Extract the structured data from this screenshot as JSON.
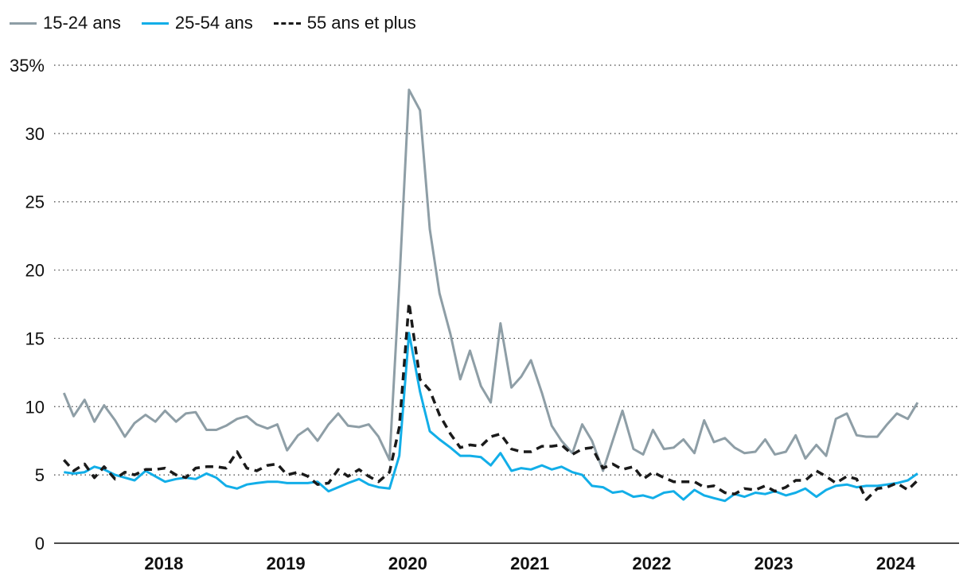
{
  "chart_data": {
    "type": "line",
    "title": "",
    "xlabel": "",
    "ylabel": "",
    "unit": "%",
    "ylim": [
      0,
      35
    ],
    "yticks": [
      "0",
      "5",
      "10",
      "15",
      "20",
      "25",
      "30",
      "35%"
    ],
    "ytick_values": [
      0,
      5,
      10,
      15,
      20,
      25,
      30,
      35
    ],
    "xlim": [
      2017.5,
      2024.92
    ],
    "xticks": [
      {
        "label": "2018",
        "x": 2018.0
      },
      {
        "label": "2019",
        "x": 2019.0
      },
      {
        "label": "2020",
        "x": 2020.0
      },
      {
        "label": "2021",
        "x": 2021.0
      },
      {
        "label": "2022",
        "x": 2022.0
      },
      {
        "label": "2023",
        "x": 2023.0
      },
      {
        "label": "2024",
        "x": 2024.0
      }
    ],
    "grid": "horizontal-dotted",
    "legend": "top-left",
    "series": [
      {
        "name": "15-24 ans",
        "color": "#8e9ea6",
        "style": "solid",
        "points": [
          [
            2017.58,
            11.0
          ],
          [
            2017.66,
            9.3
          ],
          [
            2017.75,
            10.5
          ],
          [
            2017.83,
            8.9
          ],
          [
            2017.91,
            10.1
          ],
          [
            2018.0,
            9.0
          ],
          [
            2018.08,
            7.8
          ],
          [
            2018.16,
            8.8
          ],
          [
            2018.25,
            9.4
          ],
          [
            2018.33,
            8.9
          ],
          [
            2018.41,
            9.7
          ],
          [
            2018.5,
            8.9
          ],
          [
            2018.58,
            9.5
          ],
          [
            2018.66,
            9.6
          ],
          [
            2018.75,
            8.3
          ],
          [
            2018.83,
            8.3
          ],
          [
            2018.91,
            8.6
          ],
          [
            2019.0,
            9.1
          ],
          [
            2019.08,
            9.3
          ],
          [
            2019.16,
            8.7
          ],
          [
            2019.25,
            8.4
          ],
          [
            2019.33,
            8.7
          ],
          [
            2019.41,
            6.8
          ],
          [
            2019.5,
            7.9
          ],
          [
            2019.58,
            8.4
          ],
          [
            2019.66,
            7.5
          ],
          [
            2019.75,
            8.7
          ],
          [
            2019.83,
            9.5
          ],
          [
            2019.91,
            8.6
          ],
          [
            2020.0,
            8.5
          ],
          [
            2020.08,
            8.7
          ],
          [
            2020.16,
            7.8
          ],
          [
            2020.25,
            6.1
          ],
          [
            2020.33,
            19.0
          ],
          [
            2020.41,
            33.2
          ],
          [
            2020.5,
            31.7
          ],
          [
            2020.58,
            23.0
          ],
          [
            2020.66,
            18.3
          ],
          [
            2020.75,
            15.3
          ],
          [
            2020.83,
            12.0
          ],
          [
            2020.91,
            14.1
          ],
          [
            2021.0,
            11.5
          ],
          [
            2021.08,
            10.3
          ],
          [
            2021.16,
            16.1
          ],
          [
            2021.25,
            11.4
          ],
          [
            2021.33,
            12.2
          ],
          [
            2021.41,
            13.4
          ],
          [
            2021.5,
            11.0
          ],
          [
            2021.58,
            8.6
          ],
          [
            2021.66,
            7.5
          ],
          [
            2021.75,
            6.6
          ],
          [
            2021.83,
            8.7
          ],
          [
            2021.91,
            7.5
          ],
          [
            2022.0,
            5.3
          ],
          [
            2022.08,
            7.5
          ],
          [
            2022.16,
            9.7
          ],
          [
            2022.25,
            6.9
          ],
          [
            2022.33,
            6.5
          ],
          [
            2022.41,
            8.3
          ],
          [
            2022.5,
            6.9
          ],
          [
            2022.58,
            7.0
          ],
          [
            2022.66,
            7.6
          ],
          [
            2022.75,
            6.6
          ],
          [
            2022.83,
            9.0
          ],
          [
            2022.91,
            7.4
          ],
          [
            2023.0,
            7.7
          ],
          [
            2023.08,
            7.0
          ],
          [
            2023.16,
            6.6
          ],
          [
            2023.25,
            6.7
          ],
          [
            2023.33,
            7.6
          ],
          [
            2023.41,
            6.5
          ],
          [
            2023.5,
            6.7
          ],
          [
            2023.58,
            7.9
          ],
          [
            2023.66,
            6.2
          ],
          [
            2023.75,
            7.2
          ],
          [
            2023.83,
            6.4
          ],
          [
            2023.91,
            9.1
          ],
          [
            2024.0,
            9.5
          ],
          [
            2024.08,
            7.9
          ],
          [
            2024.16,
            7.8
          ],
          [
            2024.25,
            7.8
          ],
          [
            2024.33,
            8.7
          ],
          [
            2024.41,
            9.5
          ],
          [
            2024.5,
            9.1
          ],
          [
            2024.58,
            10.3
          ]
        ]
      },
      {
        "name": "25-54 ans",
        "color": "#12aee8",
        "style": "solid",
        "points": [
          [
            2017.58,
            5.2
          ],
          [
            2017.66,
            5.1
          ],
          [
            2017.75,
            5.2
          ],
          [
            2017.83,
            5.6
          ],
          [
            2017.91,
            5.4
          ],
          [
            2018.0,
            5.0
          ],
          [
            2018.08,
            4.8
          ],
          [
            2018.16,
            4.6
          ],
          [
            2018.25,
            5.3
          ],
          [
            2018.33,
            4.9
          ],
          [
            2018.41,
            4.5
          ],
          [
            2018.5,
            4.7
          ],
          [
            2018.58,
            4.8
          ],
          [
            2018.66,
            4.7
          ],
          [
            2018.75,
            5.1
          ],
          [
            2018.83,
            4.8
          ],
          [
            2018.91,
            4.2
          ],
          [
            2019.0,
            4.0
          ],
          [
            2019.08,
            4.3
          ],
          [
            2019.16,
            4.4
          ],
          [
            2019.25,
            4.5
          ],
          [
            2019.33,
            4.5
          ],
          [
            2019.41,
            4.4
          ],
          [
            2019.5,
            4.4
          ],
          [
            2019.58,
            4.4
          ],
          [
            2019.66,
            4.5
          ],
          [
            2019.75,
            3.8
          ],
          [
            2019.83,
            4.1
          ],
          [
            2019.91,
            4.4
          ],
          [
            2020.0,
            4.7
          ],
          [
            2020.08,
            4.3
          ],
          [
            2020.16,
            4.1
          ],
          [
            2020.25,
            4.0
          ],
          [
            2020.33,
            6.4
          ],
          [
            2020.41,
            15.4
          ],
          [
            2020.5,
            11.1
          ],
          [
            2020.58,
            8.2
          ],
          [
            2020.66,
            7.6
          ],
          [
            2020.75,
            7.0
          ],
          [
            2020.83,
            6.4
          ],
          [
            2020.91,
            6.4
          ],
          [
            2021.0,
            6.3
          ],
          [
            2021.08,
            5.7
          ],
          [
            2021.16,
            6.6
          ],
          [
            2021.25,
            5.3
          ],
          [
            2021.33,
            5.5
          ],
          [
            2021.41,
            5.4
          ],
          [
            2021.5,
            5.7
          ],
          [
            2021.58,
            5.4
          ],
          [
            2021.66,
            5.6
          ],
          [
            2021.75,
            5.2
          ],
          [
            2021.83,
            5.0
          ],
          [
            2021.91,
            4.2
          ],
          [
            2022.0,
            4.1
          ],
          [
            2022.08,
            3.7
          ],
          [
            2022.16,
            3.8
          ],
          [
            2022.25,
            3.4
          ],
          [
            2022.33,
            3.5
          ],
          [
            2022.41,
            3.3
          ],
          [
            2022.5,
            3.7
          ],
          [
            2022.58,
            3.8
          ],
          [
            2022.66,
            3.2
          ],
          [
            2022.75,
            3.9
          ],
          [
            2022.83,
            3.5
          ],
          [
            2022.91,
            3.3
          ],
          [
            2023.0,
            3.1
          ],
          [
            2023.08,
            3.6
          ],
          [
            2023.16,
            3.4
          ],
          [
            2023.25,
            3.7
          ],
          [
            2023.33,
            3.6
          ],
          [
            2023.41,
            3.8
          ],
          [
            2023.5,
            3.5
          ],
          [
            2023.58,
            3.7
          ],
          [
            2023.66,
            4.0
          ],
          [
            2023.75,
            3.4
          ],
          [
            2023.83,
            3.9
          ],
          [
            2023.91,
            4.2
          ],
          [
            2024.0,
            4.3
          ],
          [
            2024.08,
            4.1
          ],
          [
            2024.16,
            4.2
          ],
          [
            2024.25,
            4.2
          ],
          [
            2024.33,
            4.3
          ],
          [
            2024.41,
            4.4
          ],
          [
            2024.5,
            4.6
          ],
          [
            2024.58,
            5.1
          ]
        ]
      },
      {
        "name": "55 ans et plus",
        "color": "#1a1a1a",
        "style": "dashed",
        "points": [
          [
            2017.58,
            6.1
          ],
          [
            2017.66,
            5.3
          ],
          [
            2017.75,
            5.8
          ],
          [
            2017.83,
            4.8
          ],
          [
            2017.91,
            5.6
          ],
          [
            2018.0,
            4.7
          ],
          [
            2018.08,
            5.2
          ],
          [
            2018.16,
            5.0
          ],
          [
            2018.25,
            5.4
          ],
          [
            2018.33,
            5.4
          ],
          [
            2018.41,
            5.5
          ],
          [
            2018.5,
            5.0
          ],
          [
            2018.58,
            4.8
          ],
          [
            2018.66,
            5.5
          ],
          [
            2018.75,
            5.6
          ],
          [
            2018.83,
            5.6
          ],
          [
            2018.91,
            5.5
          ],
          [
            2019.0,
            6.7
          ],
          [
            2019.08,
            5.5
          ],
          [
            2019.16,
            5.3
          ],
          [
            2019.25,
            5.7
          ],
          [
            2019.33,
            5.8
          ],
          [
            2019.41,
            5.0
          ],
          [
            2019.5,
            5.2
          ],
          [
            2019.58,
            4.9
          ],
          [
            2019.66,
            4.3
          ],
          [
            2019.75,
            4.4
          ],
          [
            2019.83,
            5.4
          ],
          [
            2019.91,
            4.9
          ],
          [
            2020.0,
            5.4
          ],
          [
            2020.08,
            4.9
          ],
          [
            2020.16,
            4.5
          ],
          [
            2020.25,
            5.2
          ],
          [
            2020.33,
            8.5
          ],
          [
            2020.41,
            17.6
          ],
          [
            2020.5,
            12.0
          ],
          [
            2020.58,
            11.2
          ],
          [
            2020.66,
            9.4
          ],
          [
            2020.75,
            8.0
          ],
          [
            2020.83,
            7.0
          ],
          [
            2020.91,
            7.2
          ],
          [
            2021.0,
            7.1
          ],
          [
            2021.08,
            7.8
          ],
          [
            2021.16,
            8.0
          ],
          [
            2021.25,
            6.9
          ],
          [
            2021.33,
            6.7
          ],
          [
            2021.41,
            6.7
          ],
          [
            2021.5,
            7.1
          ],
          [
            2021.58,
            7.1
          ],
          [
            2021.66,
            7.2
          ],
          [
            2021.75,
            6.5
          ],
          [
            2021.83,
            6.9
          ],
          [
            2021.91,
            7.0
          ],
          [
            2022.0,
            5.5
          ],
          [
            2022.08,
            5.8
          ],
          [
            2022.16,
            5.4
          ],
          [
            2022.25,
            5.6
          ],
          [
            2022.33,
            4.7
          ],
          [
            2022.41,
            5.2
          ],
          [
            2022.5,
            4.8
          ],
          [
            2022.58,
            4.5
          ],
          [
            2022.66,
            4.5
          ],
          [
            2022.75,
            4.5
          ],
          [
            2022.83,
            4.1
          ],
          [
            2022.91,
            4.2
          ],
          [
            2023.0,
            3.7
          ],
          [
            2023.08,
            3.6
          ],
          [
            2023.16,
            4.0
          ],
          [
            2023.25,
            3.9
          ],
          [
            2023.33,
            4.2
          ],
          [
            2023.41,
            3.8
          ],
          [
            2023.5,
            4.1
          ],
          [
            2023.58,
            4.6
          ],
          [
            2023.66,
            4.6
          ],
          [
            2023.75,
            5.3
          ],
          [
            2023.83,
            4.9
          ],
          [
            2023.91,
            4.4
          ],
          [
            2024.0,
            4.9
          ],
          [
            2024.08,
            4.7
          ],
          [
            2024.16,
            3.2
          ],
          [
            2024.25,
            4.0
          ],
          [
            2024.33,
            4.1
          ],
          [
            2024.41,
            4.4
          ],
          [
            2024.5,
            3.9
          ],
          [
            2024.58,
            4.6
          ]
        ]
      }
    ]
  }
}
